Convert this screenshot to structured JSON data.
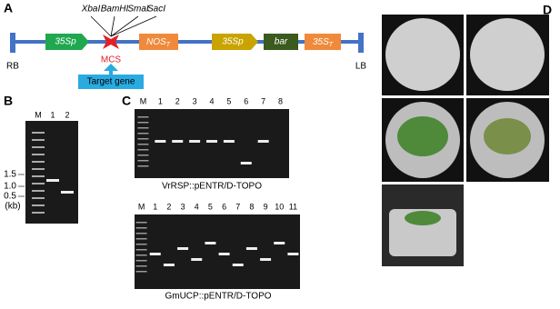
{
  "panel_a": {
    "letter": "A",
    "sites": [
      "XbaI",
      "BamHI",
      "SmaI",
      "SacI"
    ],
    "mcs": "MCS",
    "target": "Target gene",
    "rb": "RB",
    "lb": "LB",
    "boxes": [
      {
        "label": "35Sp"
      },
      {
        "label": "NOS",
        "sub": "T"
      },
      {
        "label": "35Sp"
      },
      {
        "label": "bar"
      },
      {
        "label": "35S",
        "sub": "T"
      }
    ]
  },
  "panel_b": {
    "letter": "B",
    "lanes": [
      "M",
      "1",
      "2"
    ],
    "sizes": [
      "1.5",
      "1.0",
      "0.5"
    ],
    "unit": "(kb)"
  },
  "panel_c": {
    "letter": "C",
    "gels": [
      {
        "lanes": [
          "M",
          "1",
          "2",
          "3",
          "4",
          "5",
          "6",
          "7",
          "8"
        ],
        "caption": "VrRSP::pENTR/D-TOPO"
      },
      {
        "lanes": [
          "M",
          "1",
          "2",
          "3",
          "4",
          "5",
          "6",
          "7",
          "8",
          "9",
          "10",
          "11"
        ],
        "caption": "GmUCP::pENTR/D-TOPO"
      }
    ]
  },
  "panel_d": {
    "letter": "D"
  }
}
